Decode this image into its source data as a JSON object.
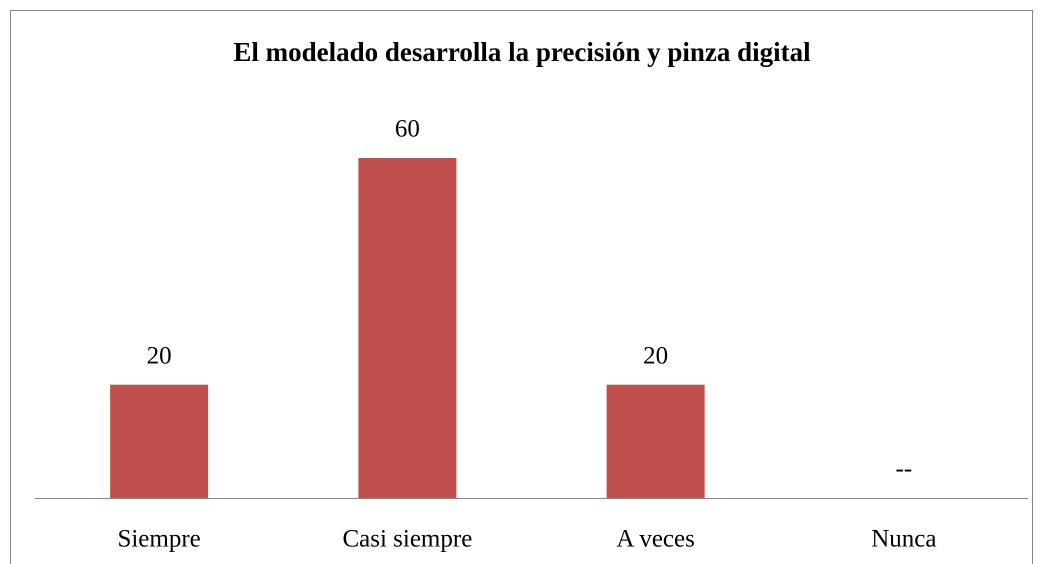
{
  "chart_data": {
    "type": "bar",
    "title": "El modelado desarrolla la precisión y pinza digital",
    "categories": [
      "Siempre",
      "Casi siempre",
      "A veces",
      "Nunca"
    ],
    "values": [
      20,
      60,
      20,
      null
    ],
    "value_labels": [
      "20",
      "60",
      "20",
      "--"
    ],
    "color": "#c0504d",
    "ylim": [
      0,
      60
    ]
  }
}
